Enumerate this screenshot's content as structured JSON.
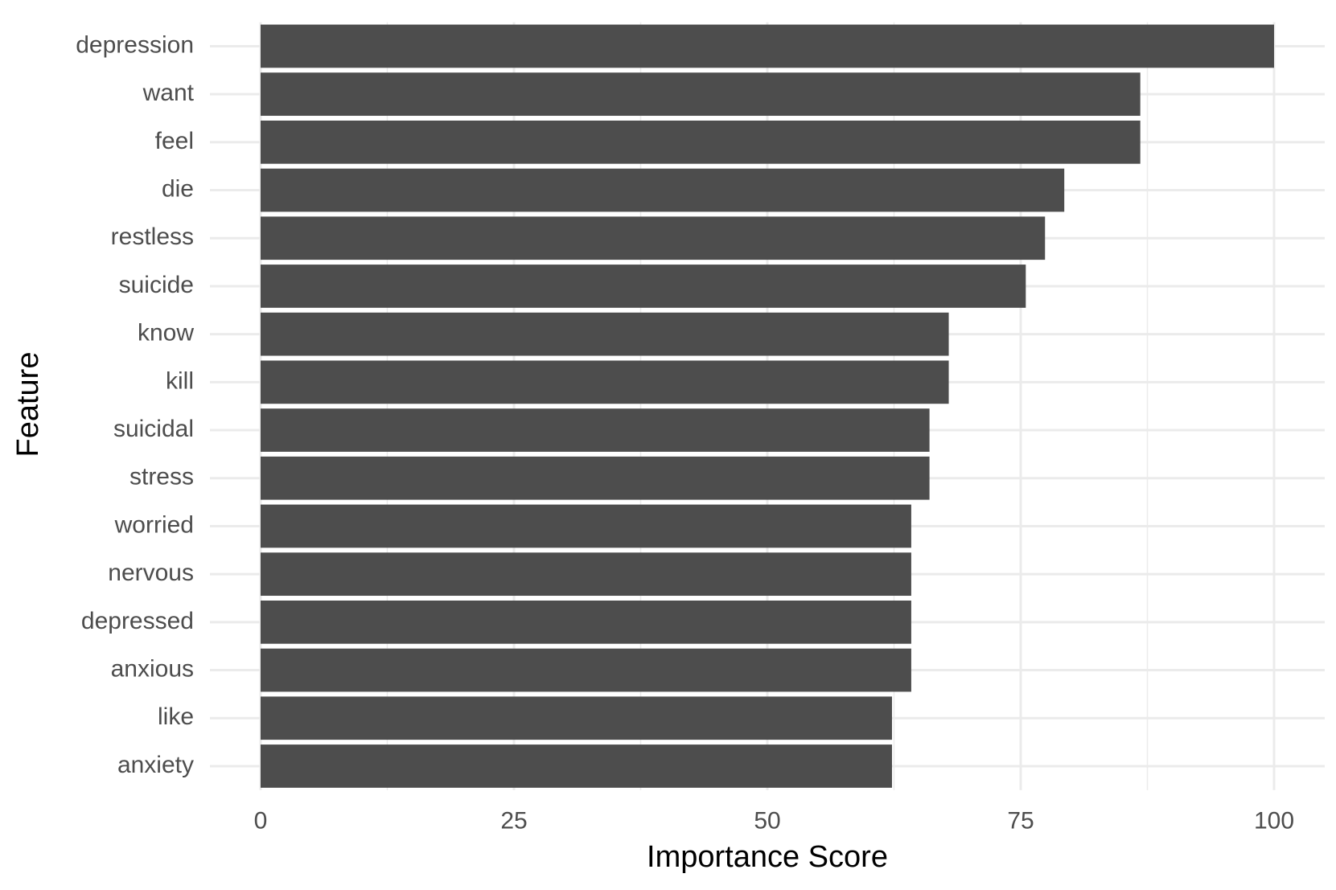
{
  "chart_data": {
    "type": "bar",
    "orientation": "horizontal",
    "categories": [
      "depression",
      "want",
      "feel",
      "die",
      "restless",
      "suicide",
      "know",
      "kill",
      "suicidal",
      "stress",
      "worried",
      "nervous",
      "depressed",
      "anxious",
      "like",
      "anxiety"
    ],
    "values": [
      100,
      86.8,
      86.8,
      79.3,
      77.4,
      75.5,
      67.9,
      67.9,
      66.0,
      66.0,
      64.2,
      64.2,
      64.2,
      64.2,
      62.3,
      62.3
    ],
    "color": "#4d4d4d",
    "xlabel": "Importance Score",
    "ylabel": "Feature",
    "xlim": [
      -5,
      105
    ],
    "xticks": [
      0,
      25,
      50,
      75,
      100
    ],
    "grid": true
  }
}
